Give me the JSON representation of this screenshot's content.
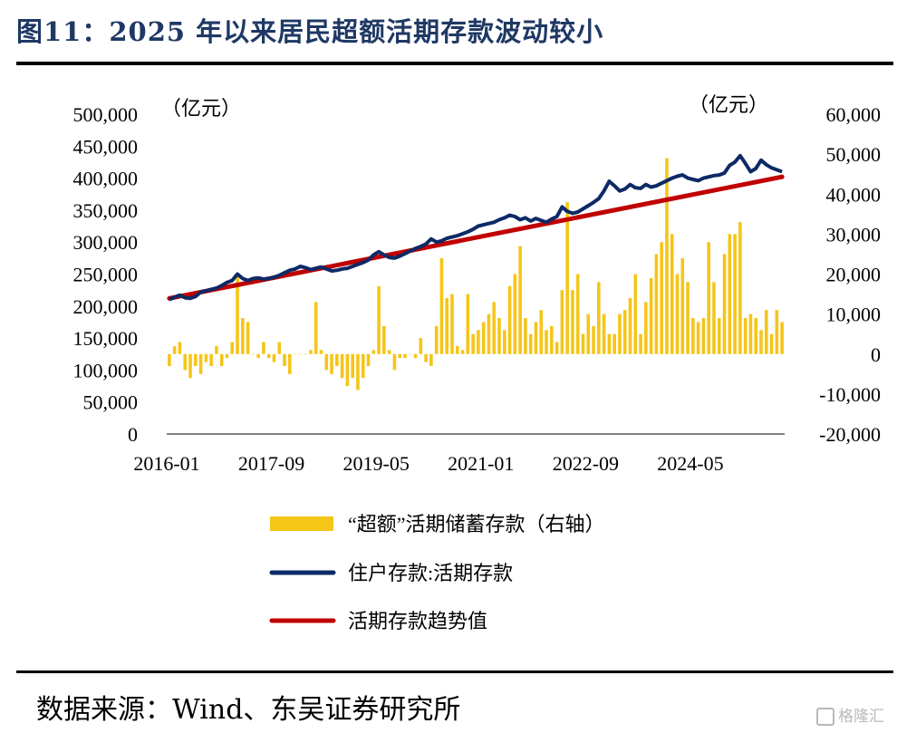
{
  "title": "图11：2025 年以来居民超额活期存款波动较小",
  "source": "数据来源：Wind、东吴证券研究所",
  "watermark": "格隆汇",
  "colors": {
    "bar": "#f5c518",
    "line": "#0d2a66",
    "trend": "#c00000",
    "title": "#1f3864"
  },
  "chart_data": {
    "type": "bar+line",
    "left_unit": "（亿元）",
    "right_unit": "（亿元）",
    "left_axis": {
      "min": 0,
      "max": 500000,
      "ticks": [
        "0",
        "50,000",
        "100,000",
        "150,000",
        "200,000",
        "250,000",
        "300,000",
        "350,000",
        "400,000",
        "450,000",
        "500,000"
      ]
    },
    "right_axis": {
      "min": -20000,
      "max": 60000,
      "ticks": [
        "-20,000",
        "-10,000",
        "0",
        "10,000",
        "20,000",
        "30,000",
        "40,000",
        "50,000",
        "60,000"
      ]
    },
    "x_ticks": [
      "2016-01",
      "2017-09",
      "2019-05",
      "2021-01",
      "2022-09",
      "2024-05"
    ],
    "x_tick_index": [
      0,
      20,
      40,
      60,
      80,
      100
    ],
    "legend": [
      "“超额”活期储蓄存款（右轴）",
      "住户存款:活期存款",
      "活期存款趋势值"
    ],
    "months": 118,
    "series": [
      {
        "name": "“超额”活期储蓄存款（右轴）",
        "type": "bar",
        "axis": "right",
        "values": [
          -3000,
          2000,
          3000,
          -4000,
          -6000,
          -3000,
          -5000,
          -2000,
          -3000,
          2000,
          -3000,
          -1000,
          3000,
          20000,
          9000,
          8000,
          0,
          -1000,
          3000,
          -1000,
          -2000,
          3000,
          -3000,
          -5000,
          0,
          0,
          0,
          1000,
          13000,
          1000,
          -4000,
          -5000,
          -3000,
          -6000,
          -8000,
          -6000,
          -9000,
          -6000,
          -3000,
          1000,
          17000,
          7000,
          1000,
          -4000,
          -1000,
          -1000,
          0,
          -1000,
          4000,
          -2000,
          -3000,
          7000,
          24000,
          14000,
          15000,
          2000,
          1000,
          15000,
          5000,
          6000,
          8000,
          10000,
          13000,
          9000,
          6000,
          17000,
          20000,
          27000,
          9000,
          5000,
          8000,
          11000,
          6000,
          7000,
          3000,
          16000,
          38000,
          16000,
          20000,
          5000,
          10000,
          7000,
          18000,
          10000,
          5000,
          5000,
          10000,
          11000,
          14000,
          20000,
          5000,
          13000,
          19000,
          25000,
          28000,
          49000,
          30000,
          20000,
          24000,
          18000,
          9000,
          8000,
          9000,
          28000,
          18000,
          9000,
          25000,
          30000,
          30000,
          33000,
          9000,
          10000,
          9000,
          6000,
          11000,
          5000,
          11000,
          8000
        ]
      },
      {
        "name": "住户存款:活期存款",
        "type": "line",
        "axis": "left",
        "values": [
          210000,
          214000,
          217000,
          213000,
          212000,
          215000,
          222000,
          224000,
          226000,
          228000,
          232000,
          237000,
          240000,
          250000,
          243000,
          240000,
          243000,
          244000,
          242000,
          243000,
          245000,
          248000,
          252000,
          256000,
          258000,
          262000,
          260000,
          257000,
          259000,
          261000,
          258000,
          255000,
          256000,
          258000,
          259000,
          262000,
          265000,
          268000,
          272000,
          280000,
          285000,
          280000,
          276000,
          275000,
          278000,
          282000,
          286000,
          290000,
          293000,
          297000,
          305000,
          300000,
          302000,
          306000,
          308000,
          310000,
          313000,
          316000,
          320000,
          325000,
          327000,
          329000,
          331000,
          335000,
          338000,
          342000,
          340000,
          335000,
          338000,
          333000,
          337000,
          334000,
          331000,
          336000,
          340000,
          355000,
          348000,
          345000,
          347000,
          352000,
          357000,
          362000,
          368000,
          380000,
          395000,
          388000,
          380000,
          383000,
          390000,
          385000,
          384000,
          390000,
          386000,
          388000,
          392000,
          396000,
          400000,
          403000,
          405000,
          400000,
          398000,
          396000,
          400000,
          402000,
          404000,
          405000,
          408000,
          420000,
          425000,
          435000,
          423000,
          410000,
          415000,
          428000,
          421000,
          416000,
          413000,
          410000
        ]
      },
      {
        "name": "活期存款趋势值",
        "type": "line",
        "axis": "left",
        "values": [
          212000,
          402000
        ]
      }
    ]
  }
}
